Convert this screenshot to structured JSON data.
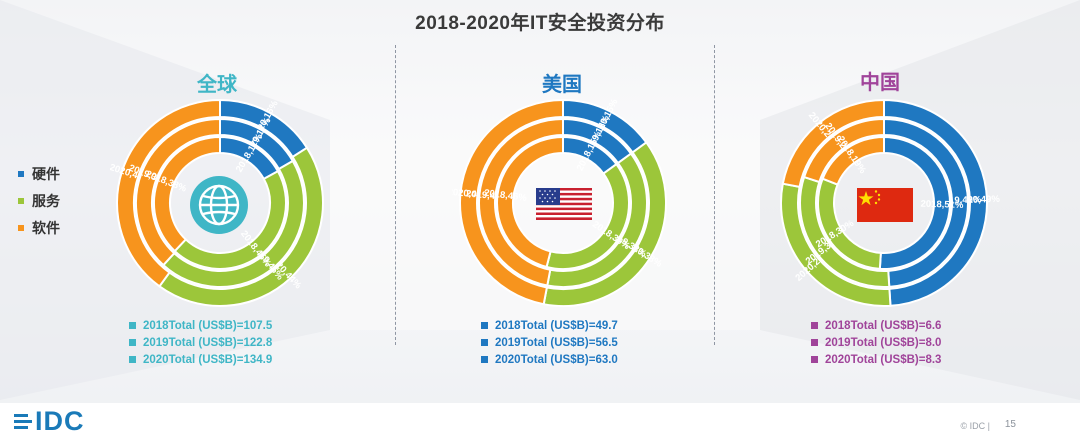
{
  "header": {
    "title": "2018-2020年IT安全投资分布"
  },
  "legend": {
    "items": [
      {
        "label": "硬件",
        "color": "#1f78c1"
      },
      {
        "label": "服务",
        "color": "#9cc63a"
      },
      {
        "label": "软件",
        "color": "#f7941d"
      }
    ]
  },
  "regions": [
    {
      "title": "全球",
      "title_color": "#3fb6c6",
      "totals": [
        "2018Total (US$B)=107.5",
        "2019Total (US$B)=122.8",
        "2020Total (US$B)=134.9"
      ],
      "totals_color": "#3fb6c6",
      "center_icon": "globe-icon"
    },
    {
      "title": "美国",
      "title_color": "#1f78c1",
      "totals": [
        "2018Total (US$B)=49.7",
        "2019Total (US$B)=56.5",
        "2020Total (US$B)=63.0"
      ],
      "totals_color": "#1f78c1",
      "center_icon": "us-flag-icon"
    },
    {
      "title": "中国",
      "title_color": "#a0449a",
      "totals": [
        "2018Total (US$B)=6.6",
        "2019Total (US$B)=8.0",
        "2020Total (US$B)=8.3"
      ],
      "totals_color": "#a0449a",
      "center_icon": "china-flag-icon"
    }
  ],
  "chart_data": [
    {
      "type": "pie",
      "title": "全球",
      "categories": [
        "硬件",
        "服务",
        "软件"
      ],
      "series": [
        {
          "name": "2020",
          "values": [
            16,
            44,
            40
          ],
          "labels": [
            "2020,16%",
            "2020,44%",
            "2020,40%"
          ]
        },
        {
          "name": "2019",
          "values": [
            17,
            46,
            39
          ],
          "labels": [
            "2019,17%",
            "2019,46%",
            "2019,39%"
          ]
        },
        {
          "name": "2018",
          "values": [
            17,
            45,
            38
          ],
          "labels": [
            "2018,17%",
            "2018,45%",
            "2018,38%"
          ]
        }
      ]
    },
    {
      "type": "pie",
      "title": "美国",
      "categories": [
        "硬件",
        "服务",
        "软件"
      ],
      "series": [
        {
          "name": "2020",
          "values": [
            15,
            38,
            47
          ],
          "labels": [
            "2020,15%",
            "2020,38%",
            "2020,47%"
          ]
        },
        {
          "name": "2019",
          "values": [
            15,
            38,
            47
          ],
          "labels": [
            "2019,15%",
            "2019,38%",
            "2019,47%"
          ]
        },
        {
          "name": "2018",
          "values": [
            15,
            39,
            46
          ],
          "labels": [
            "2018,15%",
            "2018,39%",
            "2018,46%"
          ]
        }
      ]
    },
    {
      "type": "pie",
      "title": "中国",
      "categories": [
        "硬件",
        "服务",
        "软件"
      ],
      "series": [
        {
          "name": "2020",
          "values": [
            49,
            29,
            22
          ],
          "labels": [
            "2020,49%",
            "2020,29%",
            "2020,22%"
          ]
        },
        {
          "name": "2019",
          "values": [
            49,
            31,
            20
          ],
          "labels": [
            "2019,49%",
            "2019,31%",
            "2019,20%"
          ]
        },
        {
          "name": "2018",
          "values": [
            51,
            30,
            19
          ],
          "labels": [
            "2018,51%",
            "2018,30%",
            "2018,19%"
          ]
        }
      ]
    }
  ],
  "footer": {
    "logo_text": "IDC",
    "copyright": "© IDC |",
    "page_number": "15"
  }
}
